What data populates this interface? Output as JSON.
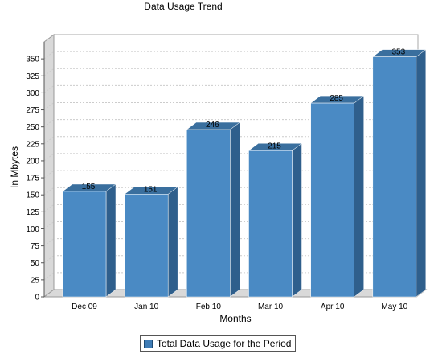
{
  "chart_data": {
    "type": "bar",
    "title": "Data Usage Trend",
    "xlabel": "Months",
    "ylabel": "In Mbytes",
    "categories": [
      "Dec 09",
      "Jan 10",
      "Feb 10",
      "Mar 10",
      "Apr 10",
      "May 10"
    ],
    "series": [
      {
        "name": "Total Data Usage for the Period",
        "values": [
          155,
          151,
          246,
          215,
          285,
          353
        ]
      }
    ],
    "ylim": [
      0,
      375
    ],
    "yticks": [
      0,
      25,
      50,
      75,
      100,
      125,
      150,
      175,
      200,
      225,
      250,
      275,
      300,
      325,
      350
    ],
    "grid": true,
    "legend_position": "bottom",
    "style": "3d",
    "colors": {
      "bar_front": "#4a8ac4",
      "bar_top": "#3a6f9e",
      "bar_side": "#2f5f8c",
      "wall": "#d9d9d9"
    }
  }
}
